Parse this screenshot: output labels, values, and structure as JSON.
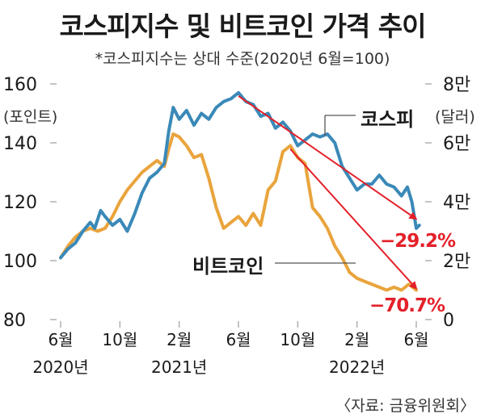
{
  "header": {
    "title": "코스피지수 및 비트코인 가격 추이",
    "subtitle": "*코스피지수는 상대 수준(2020년 6월=100)"
  },
  "source": "〈자료: 금융위원회〉",
  "colors": {
    "kospi": "#3a89b8",
    "bitcoin": "#e9a43c",
    "arrow": "#e4202a",
    "grid": "#b0b0b0"
  },
  "chart_data": {
    "type": "line",
    "x_axis": {
      "ticks": [
        {
          "month": 0,
          "label": "6월"
        },
        {
          "month": 4,
          "label": "10월"
        },
        {
          "month": 8,
          "label": "2월"
        },
        {
          "month": 12,
          "label": "6월"
        },
        {
          "month": 16,
          "label": "10월"
        },
        {
          "month": 20,
          "label": "2월"
        },
        {
          "month": 24,
          "label": "6월"
        }
      ],
      "years": [
        {
          "month": 0,
          "label": "2020년"
        },
        {
          "month": 8,
          "label": "2021년"
        },
        {
          "month": 20,
          "label": "2022년"
        }
      ],
      "range": [
        0,
        24
      ]
    },
    "y_left": {
      "title": "(포인트)",
      "range": [
        80,
        160
      ],
      "ticks": [
        {
          "v": 80,
          "label": "80"
        },
        {
          "v": 100,
          "label": "100"
        },
        {
          "v": 120,
          "label": "120"
        },
        {
          "v": 140,
          "label": "140"
        },
        {
          "v": 160,
          "label": "160"
        }
      ]
    },
    "y_right": {
      "title": "(달러)",
      "range": [
        0,
        8
      ],
      "ticks": [
        {
          "v": 0,
          "label": "0"
        },
        {
          "v": 2,
          "label": "2만"
        },
        {
          "v": 4,
          "label": "4만"
        },
        {
          "v": 6,
          "label": "6만"
        },
        {
          "v": 8,
          "label": "8만"
        }
      ]
    },
    "series": [
      {
        "name": "코스피",
        "axis": "left",
        "points": [
          [
            0,
            101
          ],
          [
            0.5,
            104
          ],
          [
            1,
            106
          ],
          [
            1.5,
            110
          ],
          [
            2,
            113
          ],
          [
            2.3,
            111
          ],
          [
            2.7,
            117
          ],
          [
            3,
            115
          ],
          [
            3.5,
            112
          ],
          [
            4,
            114
          ],
          [
            4.5,
            110
          ],
          [
            5,
            116
          ],
          [
            5.5,
            123
          ],
          [
            6,
            128
          ],
          [
            6.5,
            130
          ],
          [
            7,
            133
          ],
          [
            7.3,
            144
          ],
          [
            7.6,
            152
          ],
          [
            8,
            148
          ],
          [
            8.5,
            151
          ],
          [
            9,
            146
          ],
          [
            9.5,
            150
          ],
          [
            10,
            148
          ],
          [
            10.5,
            152
          ],
          [
            11,
            154
          ],
          [
            11.5,
            155
          ],
          [
            12,
            157
          ],
          [
            12.5,
            154
          ],
          [
            13,
            153
          ],
          [
            13.5,
            149
          ],
          [
            14,
            150
          ],
          [
            14.5,
            145
          ],
          [
            15,
            147
          ],
          [
            15.5,
            144
          ],
          [
            16,
            139
          ],
          [
            16.5,
            141
          ],
          [
            17,
            143
          ],
          [
            17.5,
            142
          ],
          [
            18,
            143
          ],
          [
            18.5,
            140
          ],
          [
            19,
            132
          ],
          [
            19.5,
            128
          ],
          [
            20,
            124
          ],
          [
            20.5,
            126
          ],
          [
            21,
            126
          ],
          [
            21.5,
            129
          ],
          [
            22,
            126
          ],
          [
            22.5,
            125
          ],
          [
            23,
            122
          ],
          [
            23.4,
            125
          ],
          [
            23.7,
            120
          ],
          [
            24,
            111
          ],
          [
            24.2,
            112
          ]
        ]
      },
      {
        "name": "비트코인",
        "axis": "right",
        "points": [
          [
            0,
            2.1
          ],
          [
            0.5,
            2.5
          ],
          [
            1,
            2.8
          ],
          [
            1.5,
            3.0
          ],
          [
            2,
            3.1
          ],
          [
            2.5,
            3.0
          ],
          [
            3,
            3.1
          ],
          [
            3.5,
            3.5
          ],
          [
            4,
            4.0
          ],
          [
            4.5,
            4.4
          ],
          [
            5,
            4.7
          ],
          [
            5.5,
            5.0
          ],
          [
            6,
            5.2
          ],
          [
            6.5,
            5.4
          ],
          [
            7,
            5.2
          ],
          [
            7.3,
            5.8
          ],
          [
            7.6,
            6.3
          ],
          [
            8,
            6.2
          ],
          [
            8.5,
            5.9
          ],
          [
            9,
            5.5
          ],
          [
            9.5,
            5.6
          ],
          [
            10,
            4.8
          ],
          [
            10.5,
            3.8
          ],
          [
            11,
            3.1
          ],
          [
            11.5,
            3.3
          ],
          [
            12,
            3.5
          ],
          [
            12.5,
            3.2
          ],
          [
            13,
            3.6
          ],
          [
            13.5,
            3.2
          ],
          [
            14,
            4.4
          ],
          [
            14.5,
            4.7
          ],
          [
            15,
            5.7
          ],
          [
            15.5,
            5.9
          ],
          [
            16,
            5.5
          ],
          [
            16.5,
            5.3
          ],
          [
            17,
            3.8
          ],
          [
            17.5,
            3.5
          ],
          [
            18,
            3.1
          ],
          [
            18.5,
            2.5
          ],
          [
            19,
            2.1
          ],
          [
            19.5,
            1.6
          ],
          [
            20,
            1.4
          ],
          [
            20.5,
            1.3
          ],
          [
            21,
            1.2
          ],
          [
            21.5,
            1.1
          ],
          [
            22,
            1.0
          ],
          [
            22.5,
            1.1
          ],
          [
            23,
            1.0
          ],
          [
            23.5,
            1.2
          ],
          [
            24,
            1.0
          ]
        ]
      }
    ],
    "annotations": [
      {
        "series": "코스피",
        "text": "−29.2%"
      },
      {
        "series": "비트코인",
        "text": "−70.7%"
      }
    ]
  }
}
